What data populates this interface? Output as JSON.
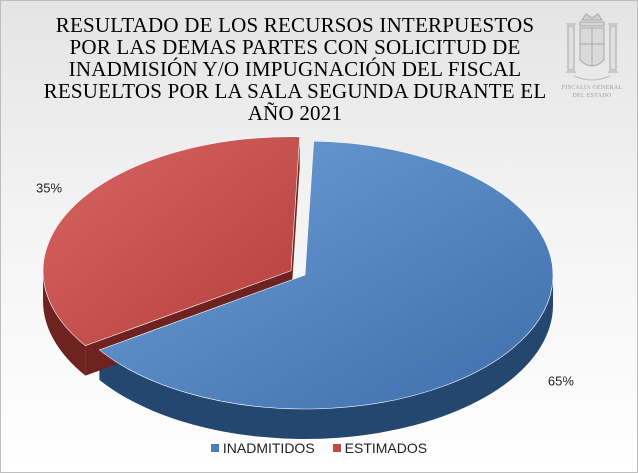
{
  "chart_data": {
    "type": "pie",
    "title": "RESULTADO DE LOS RECURSOS INTERPUESTOS POR LAS DEMAS PARTES CON SOLICITUD DE INADMISIÓN Y/O IMPUGNACIÓN DEL FISCAL RESUELTOS POR LA SALA SEGUNDA DURANTE EL AÑO 2021",
    "title_lines": [
      "RESULTADO DE LOS RECURSOS INTERPUESTOS",
      "POR LAS DEMAS PARTES CON SOLICITUD DE",
      "INADMISIÓN Y/O IMPUGNACIÓN DEL FISCAL",
      "RESUELTOS POR LA SALA SEGUNDA DURANTE EL",
      "AÑO 2021"
    ],
    "categories": [
      "INADMITIDOS",
      "ESTIMADOS"
    ],
    "values": [
      65,
      35
    ],
    "data_labels": [
      "65%",
      "35%"
    ],
    "colors": [
      "#4a7ebb",
      "#be4b48"
    ],
    "exploded": "ESTIMADOS",
    "legend_position": "bottom"
  },
  "emblem": {
    "caption_lines": [
      "FISCALIA GENERAL",
      "DEL ESTADO"
    ]
  }
}
